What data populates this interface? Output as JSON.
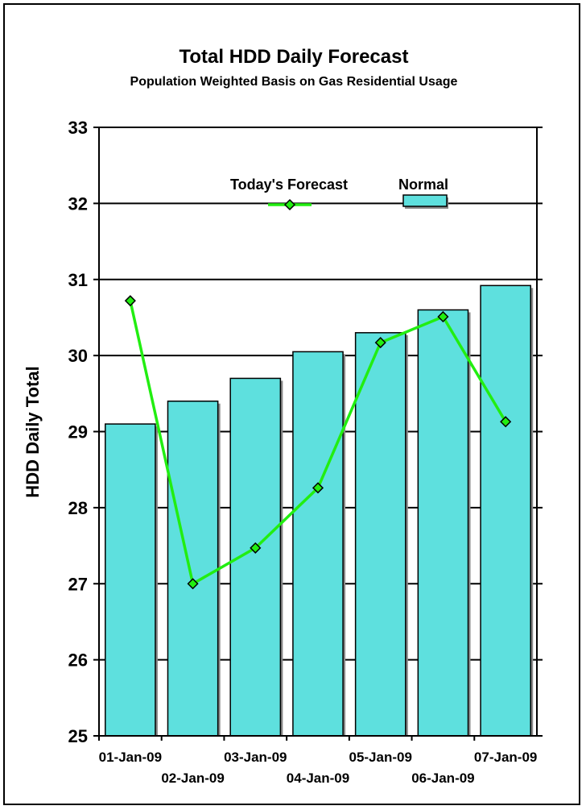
{
  "chart_data": {
    "type": "bar",
    "title": "Total HDD Daily Forecast",
    "subtitle": "Population Weighted Basis on Gas Residential Usage",
    "ylabel": "HDD Daily Total",
    "xlabel": "",
    "ylim": [
      25,
      33
    ],
    "yticks": [
      25,
      26,
      27,
      28,
      29,
      30,
      31,
      32,
      33
    ],
    "grid": "horizontal",
    "legend_position": "top-right",
    "categories": [
      "01-Jan-09",
      "02-Jan-09",
      "03-Jan-09",
      "04-Jan-09",
      "05-Jan-09",
      "06-Jan-09",
      "07-Jan-09"
    ],
    "series": [
      {
        "name": "Normal",
        "type": "bar",
        "color": "#5ee0de",
        "values": [
          29.1,
          29.4,
          29.7,
          30.05,
          30.3,
          30.6,
          30.92
        ]
      },
      {
        "name": "Today's Forecast",
        "type": "line",
        "color": "#22ee11",
        "marker": "diamond",
        "values": [
          30.72,
          27.0,
          27.47,
          28.26,
          30.17,
          30.51,
          29.13
        ]
      }
    ]
  }
}
